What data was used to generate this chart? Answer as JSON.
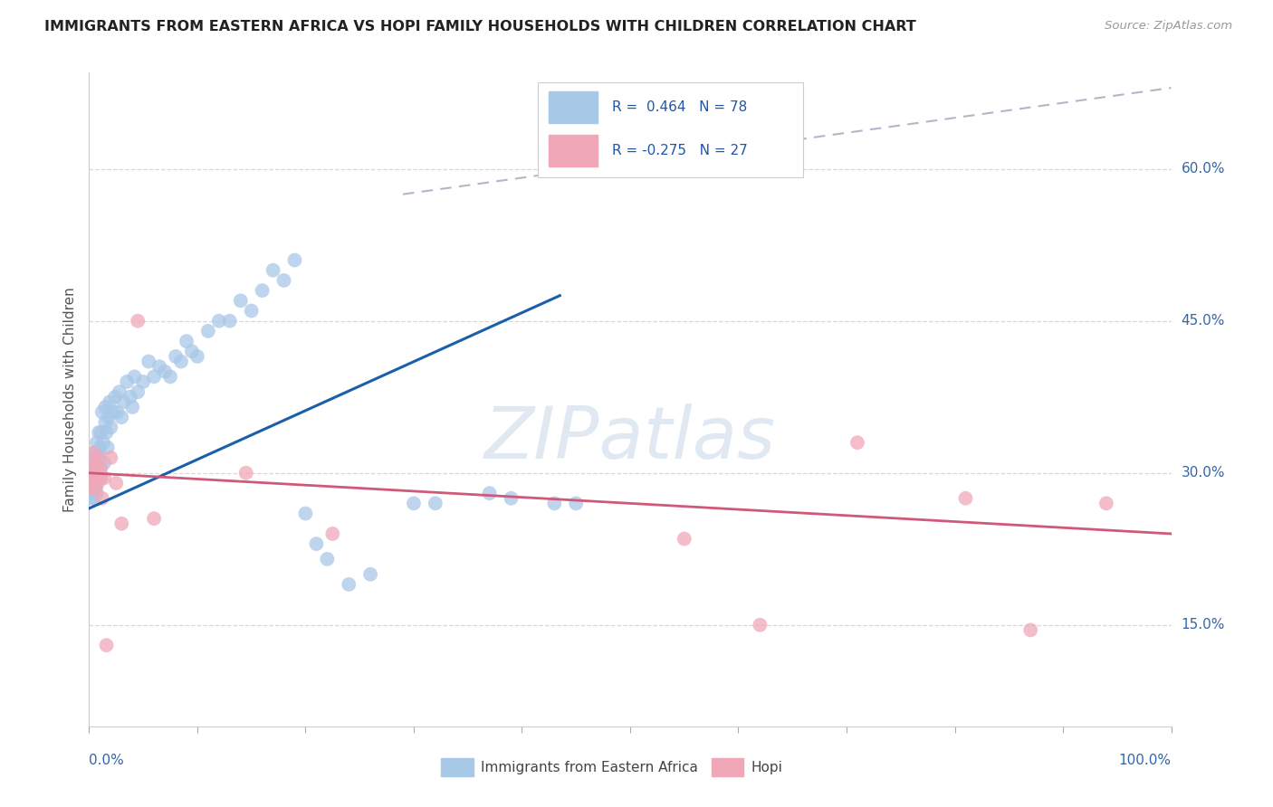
{
  "title": "IMMIGRANTS FROM EASTERN AFRICA VS HOPI FAMILY HOUSEHOLDS WITH CHILDREN CORRELATION CHART",
  "source": "Source: ZipAtlas.com",
  "ylabel": "Family Households with Children",
  "ytick_vals": [
    0.15,
    0.3,
    0.45,
    0.6
  ],
  "ytick_labels": [
    "15.0%",
    "30.0%",
    "45.0%",
    "60.0%"
  ],
  "xlim": [
    0.0,
    1.0
  ],
  "ylim": [
    0.05,
    0.695
  ],
  "R_blue": 0.464,
  "N_blue": 78,
  "R_pink": -0.275,
  "N_pink": 27,
  "legend_label_blue": "Immigrants from Eastern Africa",
  "legend_label_pink": "Hopi",
  "blue_color": "#a8c8e8",
  "pink_color": "#f0a8b8",
  "line_blue": "#1a5fa8",
  "line_pink": "#d05878",
  "line_dashed_color": "#b0b8c8",
  "background": "#ffffff",
  "grid_color": "#d8d8d8",
  "title_color": "#222222",
  "source_color": "#999999",
  "blue_x": [
    0.001,
    0.001,
    0.002,
    0.002,
    0.003,
    0.003,
    0.004,
    0.004,
    0.004,
    0.005,
    0.005,
    0.005,
    0.006,
    0.006,
    0.006,
    0.007,
    0.007,
    0.007,
    0.008,
    0.008,
    0.009,
    0.009,
    0.01,
    0.01,
    0.011,
    0.011,
    0.012,
    0.013,
    0.014,
    0.015,
    0.015,
    0.016,
    0.017,
    0.018,
    0.019,
    0.02,
    0.022,
    0.024,
    0.026,
    0.028,
    0.03,
    0.032,
    0.035,
    0.038,
    0.04,
    0.042,
    0.045,
    0.05,
    0.055,
    0.06,
    0.065,
    0.07,
    0.075,
    0.08,
    0.085,
    0.09,
    0.095,
    0.1,
    0.11,
    0.12,
    0.13,
    0.14,
    0.15,
    0.16,
    0.17,
    0.18,
    0.19,
    0.2,
    0.21,
    0.22,
    0.24,
    0.26,
    0.3,
    0.32,
    0.37,
    0.39,
    0.43,
    0.45
  ],
  "blue_y": [
    0.285,
    0.275,
    0.295,
    0.28,
    0.3,
    0.285,
    0.31,
    0.295,
    0.275,
    0.305,
    0.29,
    0.32,
    0.285,
    0.3,
    0.315,
    0.295,
    0.28,
    0.33,
    0.31,
    0.295,
    0.32,
    0.34,
    0.305,
    0.325,
    0.295,
    0.34,
    0.36,
    0.33,
    0.31,
    0.35,
    0.365,
    0.34,
    0.325,
    0.355,
    0.37,
    0.345,
    0.36,
    0.375,
    0.36,
    0.38,
    0.355,
    0.37,
    0.39,
    0.375,
    0.365,
    0.395,
    0.38,
    0.39,
    0.41,
    0.395,
    0.405,
    0.4,
    0.395,
    0.415,
    0.41,
    0.43,
    0.42,
    0.415,
    0.44,
    0.45,
    0.45,
    0.47,
    0.46,
    0.48,
    0.5,
    0.49,
    0.51,
    0.26,
    0.23,
    0.215,
    0.19,
    0.2,
    0.27,
    0.27,
    0.28,
    0.275,
    0.27,
    0.27
  ],
  "pink_x": [
    0.001,
    0.002,
    0.003,
    0.004,
    0.005,
    0.006,
    0.007,
    0.008,
    0.009,
    0.01,
    0.011,
    0.012,
    0.014,
    0.016,
    0.02,
    0.025,
    0.03,
    0.045,
    0.06,
    0.145,
    0.225,
    0.55,
    0.62,
    0.71,
    0.81,
    0.87,
    0.94
  ],
  "pink_y": [
    0.285,
    0.295,
    0.3,
    0.32,
    0.31,
    0.285,
    0.305,
    0.29,
    0.315,
    0.295,
    0.305,
    0.275,
    0.295,
    0.13,
    0.315,
    0.29,
    0.25,
    0.45,
    0.255,
    0.3,
    0.24,
    0.235,
    0.15,
    0.33,
    0.275,
    0.145,
    0.27
  ],
  "blue_line_x": [
    0.0,
    0.435
  ],
  "blue_line_y": [
    0.265,
    0.475
  ],
  "pink_line_x": [
    0.0,
    1.0
  ],
  "pink_line_y": [
    0.3,
    0.24
  ],
  "dash_line_x": [
    0.29,
    1.0
  ],
  "dash_line_y": [
    0.575,
    0.68
  ]
}
